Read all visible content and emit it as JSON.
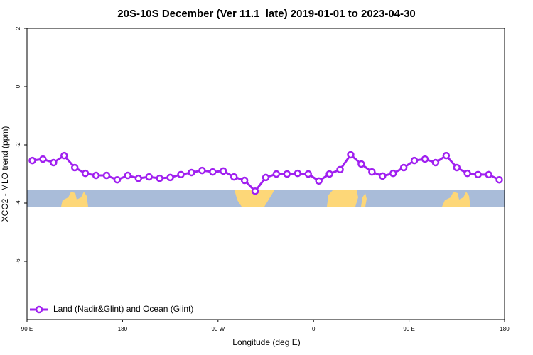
{
  "chart_data": {
    "type": "line",
    "title": "20S-10S December (Ver 11.1_late)   2019-01-01 to 2023-04-30",
    "xlabel": "Longitude (deg E)",
    "ylabel": "XCO2 - MLO trend (ppm)",
    "xlim": [
      90,
      540
    ],
    "xticks": [
      {
        "value": 90,
        "label": "90 E"
      },
      180,
      {
        "value": 270,
        "label": "90 W"
      },
      {
        "value": 360,
        "label": "0"
      },
      {
        "value": 450,
        "label": "90 E"
      },
      {
        "value": 540,
        "label": "180"
      }
    ],
    "ylim": [
      -8,
      2
    ],
    "yticks": [
      2,
      0,
      -2,
      -4,
      -6
    ],
    "legend": "bottom-left",
    "x": [
      95,
      105,
      115,
      125,
      135,
      145,
      155,
      165,
      175,
      185,
      195,
      205,
      215,
      225,
      235,
      245,
      255,
      265,
      275,
      285,
      295,
      305,
      315,
      325,
      335,
      345,
      355,
      365,
      375,
      385,
      395,
      405,
      415,
      425,
      435,
      445,
      455,
      465,
      475,
      485,
      495,
      505,
      515,
      525,
      535
    ],
    "series": [
      {
        "name": "Land (Nadir&Glint) and Ocean (Glint)",
        "color": "#a020f0",
        "values": [
          -2.54,
          -2.49,
          -2.61,
          -2.37,
          -2.78,
          -2.98,
          -3.05,
          -3.05,
          -3.2,
          -3.05,
          -3.15,
          -3.1,
          -3.15,
          -3.12,
          -3.02,
          -2.95,
          -2.88,
          -2.93,
          -2.9,
          -3.1,
          -3.22,
          -3.59,
          -3.12,
          -3.0,
          -3.0,
          -2.98,
          -3.0,
          -3.24,
          -3.0,
          -2.85,
          -2.34,
          -2.66,
          -2.93,
          -3.07,
          -2.98,
          -2.78,
          -2.54,
          -2.49,
          -2.61,
          -2.37,
          -2.78,
          -2.98,
          -3.02,
          -3.02,
          -3.2
        ]
      }
    ]
  }
}
